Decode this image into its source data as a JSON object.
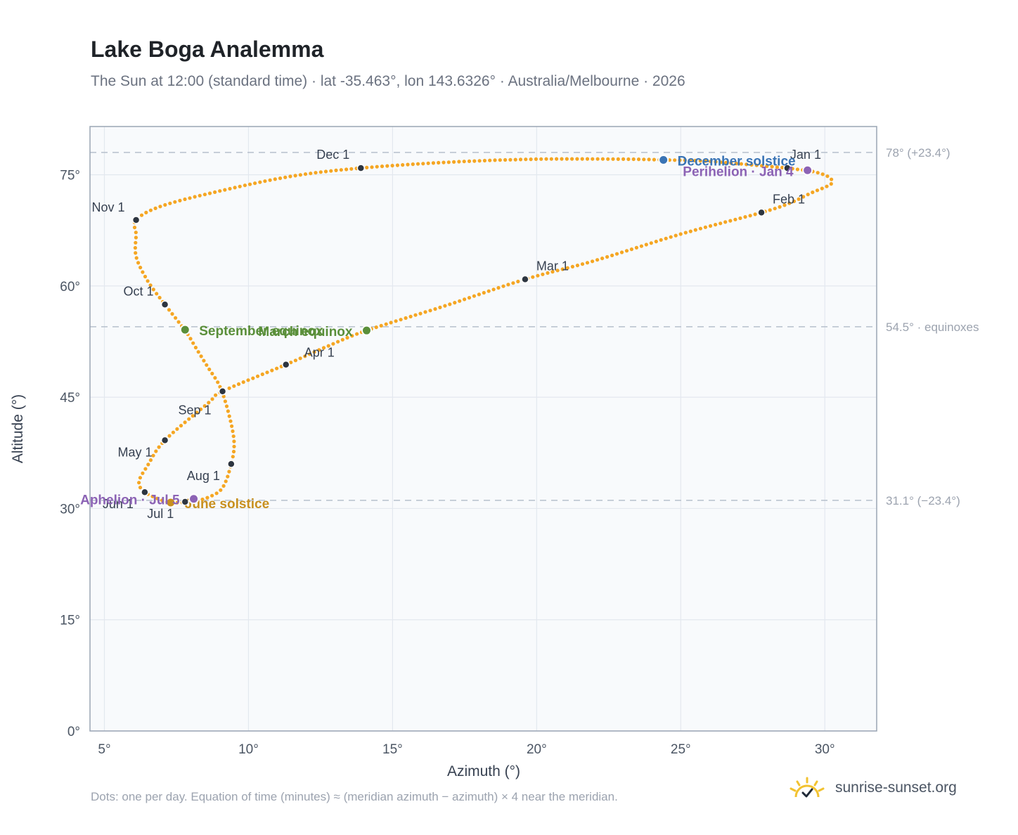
{
  "title": "Lake Boga Analemma",
  "subtitle": "The Sun at 12:00 (standard time) · lat -35.463°, lon 143.6326° · Australia/Melbourne · 2026",
  "footnote": "Dots: one per day. Equation of time (minutes) ≈ (meridian azimuth − azimuth) × 4 near the meridian.",
  "brand": {
    "name": "sunrise-sunset.org",
    "icon": "sun-logo-icon"
  },
  "colors": {
    "curve": "#f5a623",
    "month_marker": "#2d3540",
    "december_solstice": "#3a74b5",
    "june_solstice": "#c8901f",
    "equinox": "#5a8f3a",
    "perihelion_aphelion": "#8c63b5",
    "plot_bg": "#f8fafc",
    "grid": "#e3e8ef",
    "border": "#9aa5b4",
    "ref_line": "#b6c0cc"
  },
  "chart_data": {
    "type": "scatter",
    "xlabel": "Azimuth (°)",
    "ylabel": "Altitude (°)",
    "xlim": [
      4.5,
      31.8
    ],
    "ylim": [
      0,
      81.5
    ],
    "xticks": [
      5,
      10,
      15,
      20,
      25,
      30
    ],
    "xtick_labels": [
      "5°",
      "10°",
      "15°",
      "20°",
      "25°",
      "30°"
    ],
    "yticks": [
      0,
      15,
      30,
      45,
      60,
      75
    ],
    "ytick_labels": [
      "0°",
      "15°",
      "30°",
      "45°",
      "60°",
      "75°"
    ],
    "grid": true,
    "reference_lines": [
      {
        "y": 78.0,
        "label": "78° (+23.4°)"
      },
      {
        "y": 54.5,
        "label": "54.5° · equinoxes"
      },
      {
        "y": 31.1,
        "label": "31.1° (−23.4°)"
      }
    ],
    "series": [
      {
        "marker": "daily dots",
        "points": [
          [
            28.7,
            75.9
          ],
          [
            29.1,
            75.7
          ],
          [
            29.5,
            75.5
          ],
          [
            29.9,
            75.1
          ],
          [
            30.2,
            74.5
          ],
          [
            30.2,
            73.7
          ],
          [
            29.5,
            72.5
          ],
          [
            28.8,
            71.2
          ],
          [
            27.8,
            69.9
          ],
          [
            25.0,
            67.0
          ],
          [
            22.0,
            63.4
          ],
          [
            19.6,
            60.9
          ],
          [
            16.8,
            57.3
          ],
          [
            14.1,
            54.0
          ],
          [
            12.7,
            51.8
          ],
          [
            11.3,
            49.4
          ],
          [
            9.1,
            45.8
          ],
          [
            8.6,
            44.2
          ],
          [
            7.1,
            39.2
          ],
          [
            6.5,
            35.8
          ],
          [
            6.2,
            33.6
          ],
          [
            6.4,
            32.2
          ],
          [
            7.0,
            31.1
          ],
          [
            7.3,
            30.8
          ],
          [
            8.0,
            30.9
          ],
          [
            8.6,
            31.5
          ],
          [
            9.1,
            32.8
          ],
          [
            9.4,
            36.0
          ],
          [
            9.5,
            39.0
          ],
          [
            9.3,
            43.0
          ],
          [
            9.0,
            46.5
          ],
          [
            8.6,
            49.0
          ],
          [
            8.2,
            51.5
          ],
          [
            7.8,
            54.0
          ],
          [
            7.1,
            57.5
          ],
          [
            6.5,
            60.7
          ],
          [
            6.1,
            64.0
          ],
          [
            6.1,
            66.9
          ],
          [
            6.1,
            68.9
          ],
          [
            7.0,
            70.8
          ],
          [
            9.0,
            72.8
          ],
          [
            11.5,
            74.8
          ],
          [
            13.9,
            75.9
          ],
          [
            17.0,
            76.7
          ],
          [
            20.0,
            77.1
          ],
          [
            23.0,
            77.1
          ],
          [
            24.4,
            77.0
          ],
          [
            26.0,
            76.8
          ],
          [
            28.7,
            75.9
          ]
        ]
      }
    ],
    "month_markers": [
      {
        "label": "Jan 1",
        "x": 28.7,
        "y": 75.9
      },
      {
        "label": "Feb 1",
        "x": 27.8,
        "y": 69.9
      },
      {
        "label": "Mar 1",
        "x": 19.6,
        "y": 60.9
      },
      {
        "label": "Apr 1",
        "x": 11.3,
        "y": 49.4
      },
      {
        "label": "May 1",
        "x": 7.1,
        "y": 39.2
      },
      {
        "label": "Jun 1",
        "x": 6.4,
        "y": 32.2
      },
      {
        "label": "Jul 1",
        "x": 7.8,
        "y": 30.9
      },
      {
        "label": "Aug 1",
        "x": 9.4,
        "y": 36.0
      },
      {
        "label": "Sep 1",
        "x": 9.1,
        "y": 45.8
      },
      {
        "label": "Oct 1",
        "x": 7.1,
        "y": 57.5
      },
      {
        "label": "Nov 1",
        "x": 6.1,
        "y": 68.9
      },
      {
        "label": "Dec 1",
        "x": 13.9,
        "y": 75.9
      }
    ],
    "events": [
      {
        "label": "December solstice",
        "x": 24.4,
        "y": 77.0,
        "color_key": "december_solstice"
      },
      {
        "label": "Perihelion · Jan 4",
        "x": 29.4,
        "y": 75.6,
        "color_key": "perihelion_aphelion"
      },
      {
        "label": "March equinox",
        "x": 14.1,
        "y": 54.0,
        "color_key": "equinox"
      },
      {
        "label": "September equinox",
        "x": 7.8,
        "y": 54.1,
        "color_key": "equinox"
      },
      {
        "label": "June solstice",
        "x": 7.3,
        "y": 30.8,
        "color_key": "june_solstice"
      },
      {
        "label": "Aphelion · Jul 5",
        "x": 8.1,
        "y": 31.3,
        "color_key": "perihelion_aphelion"
      }
    ]
  }
}
